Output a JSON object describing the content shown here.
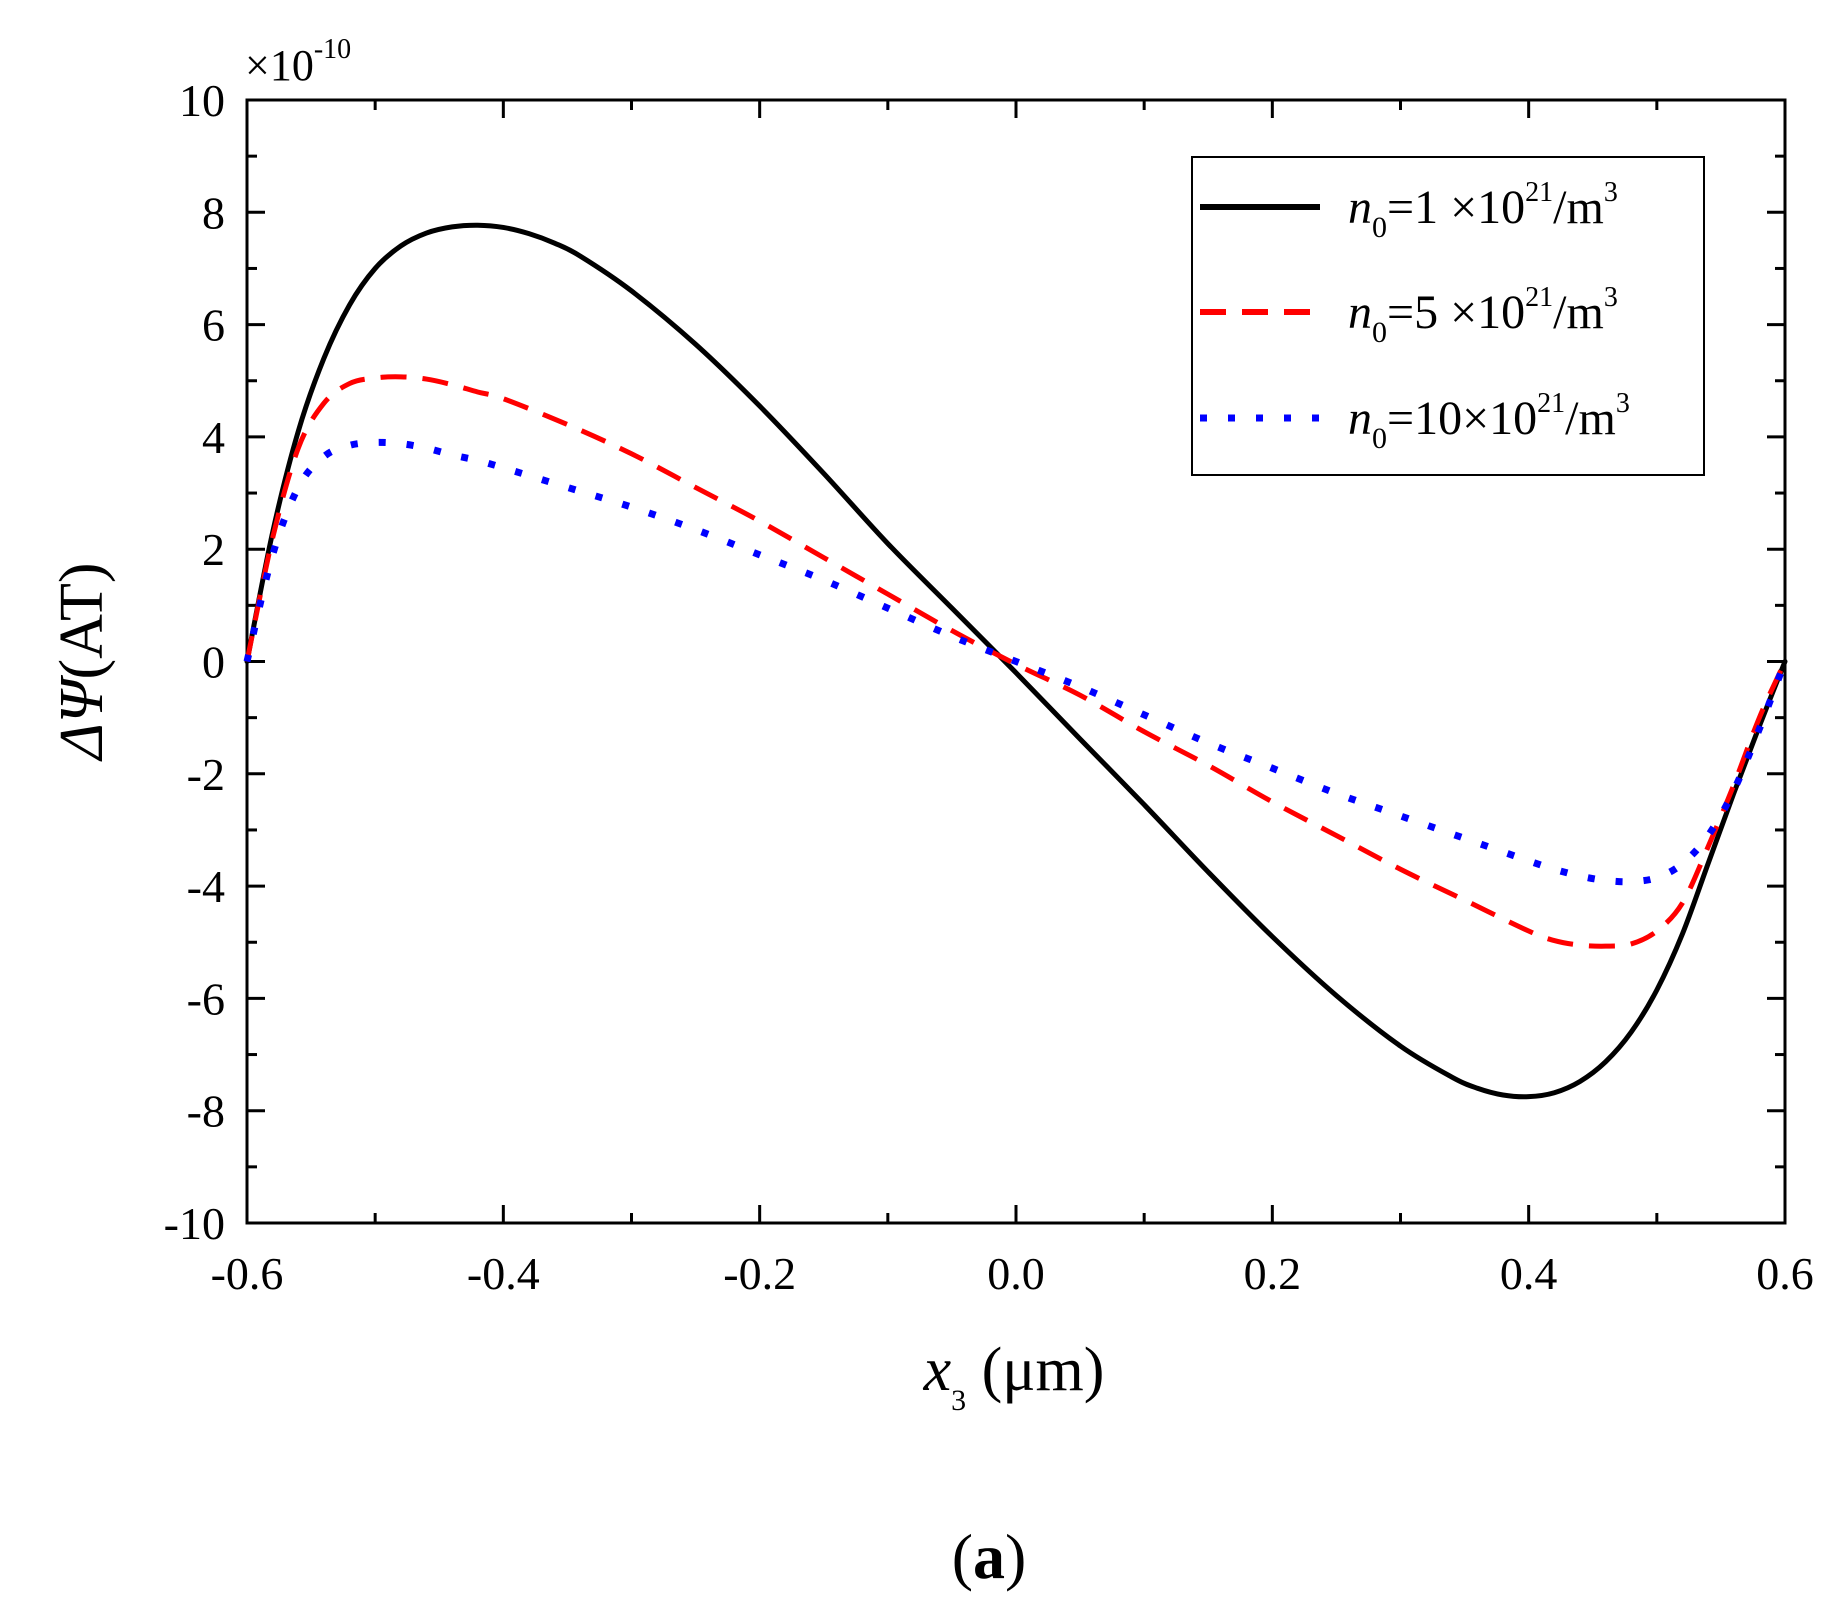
{
  "chart_data": {
    "type": "line",
    "xlabel": {
      "var": "x",
      "sub": "3",
      "unit": " (μm)"
    },
    "ylabel": {
      "var": "ΔΨ",
      "unit": "(AT)"
    },
    "multiplier": {
      "base": "×10",
      "exp": "-10"
    },
    "caption": {
      "open": "(",
      "letter": "a",
      "close": ")"
    },
    "xlim": [
      -0.6,
      0.6
    ],
    "ylim": [
      -10,
      10
    ],
    "x_ticks": [
      -0.6,
      -0.4,
      -0.2,
      0.0,
      0.2,
      0.4,
      0.6
    ],
    "x_tick_labels": [
      "-0.6",
      "-0.4",
      "-0.2",
      "0.0",
      "0.2",
      "0.4",
      "0.6"
    ],
    "y_ticks": [
      -10,
      -8,
      -6,
      -4,
      -2,
      0,
      2,
      4,
      6,
      8,
      10
    ],
    "y_tick_labels": [
      "-10",
      "-8",
      "-6",
      "-4",
      "-2",
      "0",
      "2",
      "4",
      "6",
      "8",
      "10"
    ],
    "legend_position": "top-right",
    "series": [
      {
        "name": "n0=1 ×10^21/m^3",
        "legend": {
          "n": "n",
          "sub": "0",
          "val": "=1  ×10",
          "exp1": "21",
          "unit": "/m",
          "exp2": "3"
        },
        "style": "solid",
        "color": "#000000",
        "x": [
          -0.6,
          -0.58,
          -0.56,
          -0.54,
          -0.52,
          -0.5,
          -0.48,
          -0.46,
          -0.44,
          -0.42,
          -0.4,
          -0.38,
          -0.36,
          -0.34,
          -0.3,
          -0.25,
          -0.2,
          -0.15,
          -0.1,
          -0.05,
          0.0,
          0.05,
          0.1,
          0.15,
          0.2,
          0.25,
          0.3,
          0.34,
          0.36,
          0.38,
          0.4,
          0.42,
          0.44,
          0.46,
          0.48,
          0.5,
          0.52,
          0.54,
          0.56,
          0.58,
          0.6
        ],
        "y": [
          0.0,
          2.3,
          4.1,
          5.4,
          6.35,
          7.0,
          7.4,
          7.63,
          7.74,
          7.77,
          7.73,
          7.62,
          7.45,
          7.22,
          6.6,
          5.65,
          4.55,
          3.35,
          2.1,
          0.95,
          -0.2,
          -1.38,
          -2.55,
          -3.75,
          -4.9,
          -5.95,
          -6.85,
          -7.4,
          -7.6,
          -7.72,
          -7.75,
          -7.68,
          -7.48,
          -7.13,
          -6.6,
          -5.85,
          -4.85,
          -3.6,
          -2.35,
          -1.15,
          0.0
        ]
      },
      {
        "name": "n0=5 ×10^21/m^3",
        "legend": {
          "n": "n",
          "sub": "0",
          "val": "=5  ×10",
          "exp1": "21",
          "unit": "/m",
          "exp2": "3"
        },
        "style": "dashed",
        "color": "#ff0000",
        "x": [
          -0.6,
          -0.58,
          -0.56,
          -0.54,
          -0.52,
          -0.5,
          -0.48,
          -0.46,
          -0.44,
          -0.42,
          -0.4,
          -0.35,
          -0.3,
          -0.25,
          -0.2,
          -0.15,
          -0.1,
          -0.05,
          0.0,
          0.05,
          0.1,
          0.15,
          0.2,
          0.25,
          0.3,
          0.35,
          0.4,
          0.42,
          0.44,
          0.46,
          0.48,
          0.5,
          0.52,
          0.54,
          0.56,
          0.58,
          0.6
        ],
        "y": [
          0.0,
          2.2,
          3.8,
          4.6,
          4.95,
          5.05,
          5.07,
          5.03,
          4.93,
          4.8,
          4.68,
          4.22,
          3.7,
          3.1,
          2.5,
          1.85,
          1.2,
          0.55,
          -0.05,
          -0.6,
          -1.25,
          -1.85,
          -2.5,
          -3.1,
          -3.7,
          -4.25,
          -4.8,
          -4.97,
          -5.05,
          -5.07,
          -5.03,
          -4.8,
          -4.3,
          -3.3,
          -2.2,
          -1.0,
          0.0
        ]
      },
      {
        "name": "n0=10×10^21/m^3",
        "legend": {
          "n": "n",
          "sub": "0",
          "val": "=10×10",
          "exp1": "21",
          "unit": "/m",
          "exp2": "3"
        },
        "style": "dotted",
        "color": "#0000ff",
        "x": [
          -0.6,
          -0.58,
          -0.56,
          -0.54,
          -0.52,
          -0.5,
          -0.48,
          -0.46,
          -0.44,
          -0.42,
          -0.4,
          -0.35,
          -0.3,
          -0.25,
          -0.2,
          -0.15,
          -0.1,
          -0.05,
          0.0,
          0.05,
          0.1,
          0.15,
          0.2,
          0.25,
          0.3,
          0.35,
          0.4,
          0.42,
          0.44,
          0.46,
          0.48,
          0.5,
          0.52,
          0.54,
          0.56,
          0.58,
          0.6
        ],
        "y": [
          0.0,
          1.9,
          3.1,
          3.65,
          3.85,
          3.9,
          3.88,
          3.8,
          3.68,
          3.58,
          3.45,
          3.1,
          2.75,
          2.35,
          1.9,
          1.45,
          0.95,
          0.45,
          0.0,
          -0.45,
          -0.95,
          -1.45,
          -1.9,
          -2.35,
          -2.75,
          -3.15,
          -3.55,
          -3.7,
          -3.82,
          -3.9,
          -3.92,
          -3.85,
          -3.6,
          -3.1,
          -2.3,
          -1.2,
          0.0
        ]
      }
    ]
  }
}
